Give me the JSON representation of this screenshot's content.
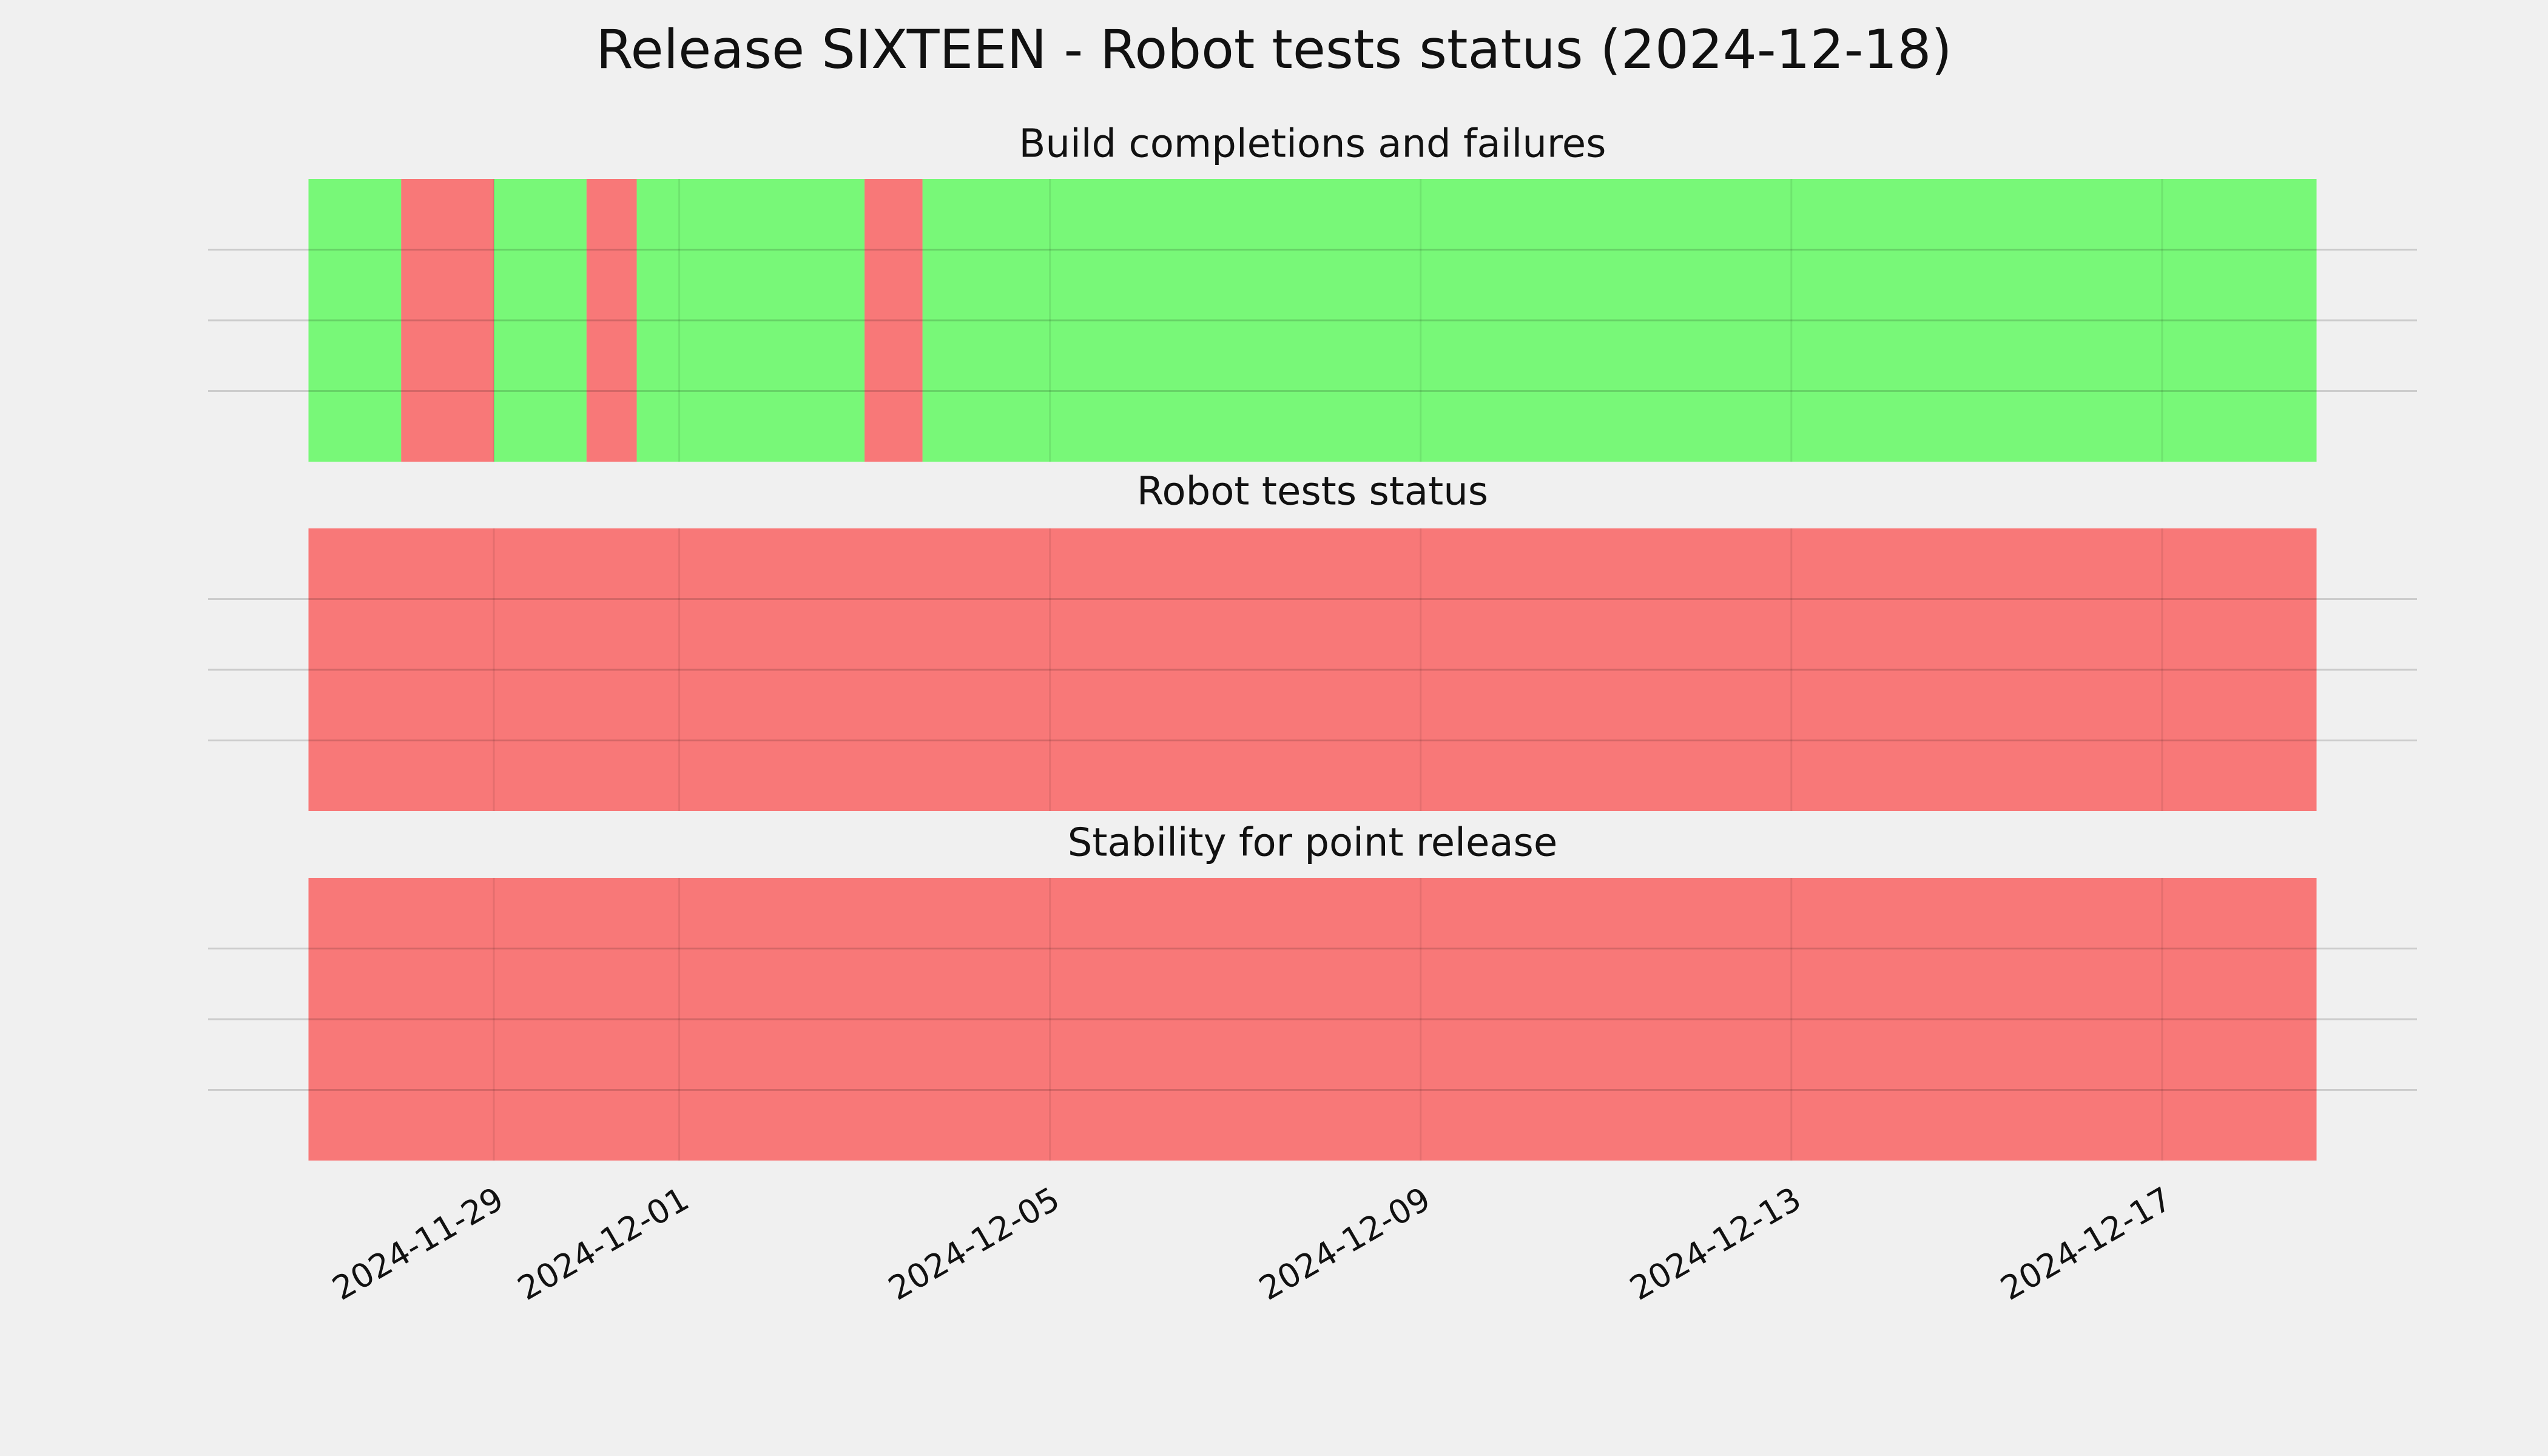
{
  "title": "Release SIXTEEN - Robot tests status (2024-12-18)",
  "chart_data": [
    {
      "type": "timeline",
      "title": "Build completions and failures",
      "xlim": [
        "2024-11-25T22:00",
        "2024-12-19T18:00"
      ],
      "ylim": [
        0,
        1
      ],
      "xticks": [
        "2024-11-29",
        "2024-12-01",
        "2024-12-05",
        "2024-12-09",
        "2024-12-13",
        "2024-12-17"
      ],
      "yticks": [
        0.25,
        0.5,
        0.75
      ],
      "grid": true,
      "spans": [
        {
          "start": "2024-11-27T00:00",
          "end": "2024-11-28T00:00",
          "color": "#00ff00"
        },
        {
          "start": "2024-11-28T00:00",
          "end": "2024-11-29T00:00",
          "color": "#ff0000"
        },
        {
          "start": "2024-11-29T00:00",
          "end": "2024-11-30T00:00",
          "color": "#00ff00"
        },
        {
          "start": "2024-11-30T00:00",
          "end": "2024-11-30T13:00",
          "color": "#ff0000"
        },
        {
          "start": "2024-11-30T13:00",
          "end": "2024-12-03T00:00",
          "color": "#00ff00"
        },
        {
          "start": "2024-12-03T00:00",
          "end": "2024-12-03T15:00",
          "color": "#ff0000"
        },
        {
          "start": "2024-12-03T15:00",
          "end": "2024-12-18T16:00",
          "color": "#00ff00"
        }
      ]
    },
    {
      "type": "timeline",
      "title": "Robot tests status",
      "xlim": [
        "2024-11-25T22:00",
        "2024-12-19T18:00"
      ],
      "ylim": [
        0,
        1
      ],
      "xticks": [
        "2024-11-29",
        "2024-12-01",
        "2024-12-05",
        "2024-12-09",
        "2024-12-13",
        "2024-12-17"
      ],
      "yticks": [
        0.25,
        0.5,
        0.75
      ],
      "grid": true,
      "spans": [
        {
          "start": "2024-11-27T00:00",
          "end": "2024-12-18T16:00",
          "color": "#ff0000"
        }
      ]
    },
    {
      "type": "timeline",
      "title": "Stability for point release",
      "xlim": [
        "2024-11-25T22:00",
        "2024-12-19T18:00"
      ],
      "ylim": [
        0,
        1
      ],
      "xticks": [
        "2024-11-29",
        "2024-12-01",
        "2024-12-05",
        "2024-12-09",
        "2024-12-13",
        "2024-12-17"
      ],
      "yticks": [
        0.25,
        0.5,
        0.75
      ],
      "grid": true,
      "show_xtick_labels": true,
      "spans": [
        {
          "start": "2024-11-27T00:00",
          "end": "2024-12-18T16:00",
          "color": "#ff0000"
        }
      ]
    }
  ]
}
